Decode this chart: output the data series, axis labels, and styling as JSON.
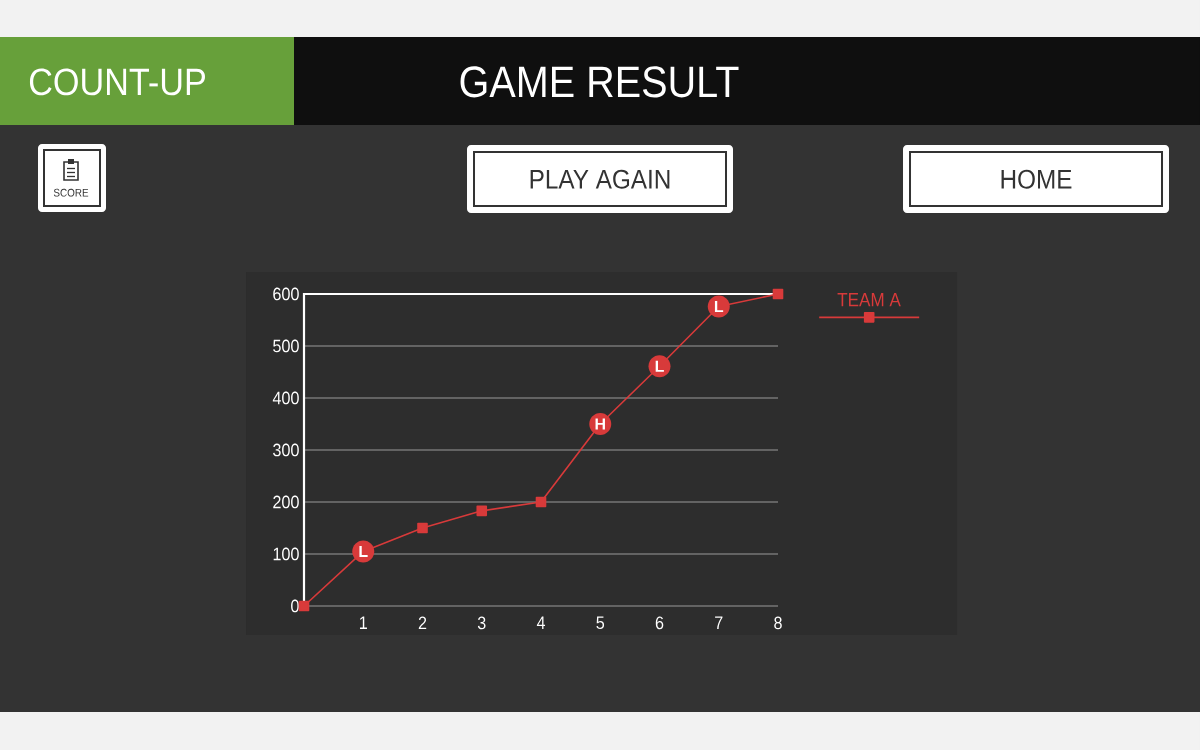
{
  "chart_data": {
    "type": "line",
    "title": "GAME RESULT",
    "subtitle": "COUNT-UP",
    "x": [
      0,
      1,
      2,
      3,
      4,
      5,
      6,
      7,
      8
    ],
    "series": [
      {
        "name": "TEAM A",
        "color": "#d83a3a",
        "values": [
          0,
          105,
          150,
          183,
          200,
          350,
          461,
          576,
          600
        ]
      }
    ],
    "xlim": [
      0,
      8
    ],
    "ylim": [
      0,
      600
    ],
    "xticks": [
      1,
      2,
      3,
      4,
      5,
      6,
      7,
      8
    ],
    "yticks": [
      0,
      100,
      200,
      300,
      400,
      500,
      600
    ],
    "grid": "y",
    "legend": "top right",
    "marker": "square",
    "line_style": "solid",
    "annotations": [
      {
        "text": "L",
        "x": 1,
        "y": 105
      },
      {
        "text": "H",
        "x": 5,
        "y": 350
      },
      {
        "text": "L",
        "x": 6,
        "y": 461
      },
      {
        "text": "L",
        "x": 7,
        "y": 576
      },
      "SCORE",
      "PLAY AGAIN",
      "HOME"
    ]
  }
}
